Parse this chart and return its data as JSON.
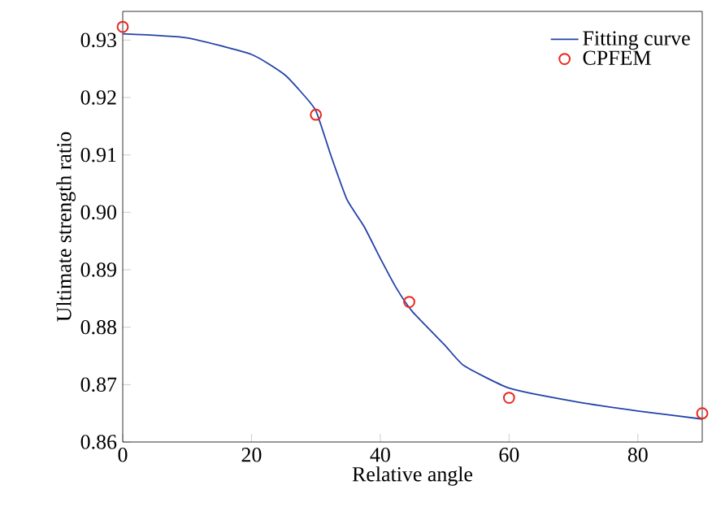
{
  "chart_data": {
    "type": "line",
    "xlabel": "Relative angle",
    "ylabel": "Ultimate strength ratio",
    "xlim": [
      0,
      90
    ],
    "ylim": [
      0.86,
      0.935
    ],
    "xticks": [
      0,
      20,
      40,
      60,
      80
    ],
    "yticks": [
      {
        "value": 0.86,
        "label": "0.86"
      },
      {
        "value": 0.87,
        "label": "0.87"
      },
      {
        "value": 0.88,
        "label": "0.88"
      },
      {
        "value": 0.89,
        "label": "0.89"
      },
      {
        "value": 0.9,
        "label": "0.90"
      },
      {
        "value": 0.91,
        "label": "0.91"
      },
      {
        "value": 0.92,
        "label": "0.92"
      },
      {
        "value": 0.93,
        "label": "0.93"
      }
    ],
    "legend": "top right",
    "grid": false,
    "series": [
      {
        "name": "Fitting curve",
        "color": "#2343a8",
        "marker": "none",
        "line_style": "solid",
        "x": [
          0,
          10,
          20,
          25,
          27.5,
          30,
          32.3,
          34.8,
          37.5,
          40,
          42.5,
          45,
          50,
          53,
          60,
          70,
          80,
          90
        ],
        "values": [
          0.9311,
          0.9304,
          0.9275,
          0.9241,
          0.9212,
          0.9177,
          0.91,
          0.9023,
          0.8975,
          0.892,
          0.8868,
          0.8827,
          0.8769,
          0.8733,
          0.8694,
          0.8671,
          0.8654,
          0.864
        ]
      },
      {
        "name": "CPFEM",
        "type": "scatter",
        "color": "#e8281e",
        "marker": "circle",
        "x": [
          0,
          30,
          44.5,
          60,
          90
        ],
        "values": [
          0.9323,
          0.917,
          0.8844,
          0.8677,
          0.865
        ]
      }
    ]
  }
}
